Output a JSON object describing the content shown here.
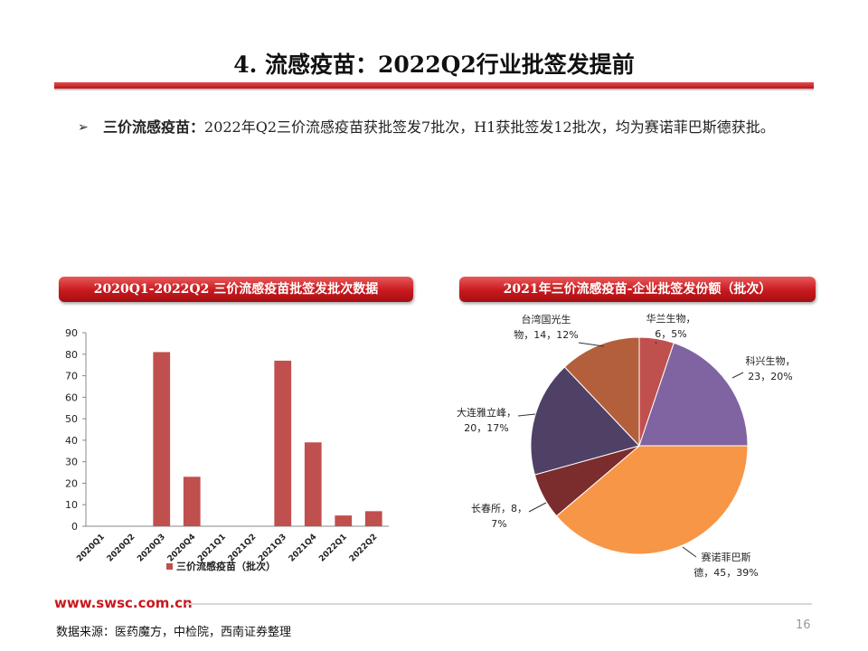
{
  "page": {
    "title": "4. 流感疫苗：2022Q2行业批签发提前",
    "bullet_arrow": "➢",
    "bullet_highlight": "三价流感疫苗：",
    "bullet_text": "2022年Q2三价流感疫苗获批签发7批次，H1获批签发12批次，均为赛诺菲巴斯德获批。",
    "footer_url": "www.swsc.com.cn",
    "source": "数据来源：医药魔方，中检院，西南证券整理",
    "page_number": "16"
  },
  "colors": {
    "accent_red": "#c8191e",
    "bar": "#c0504d"
  },
  "chart_data": [
    {
      "type": "bar",
      "title": "2020Q1-2022Q2 三价流感疫苗批签发批次数据",
      "categories": [
        "2020Q1",
        "2020Q2",
        "2020Q3",
        "2020Q4",
        "2021Q1",
        "2021Q2",
        "2021Q3",
        "2021Q4",
        "2022Q1",
        "2022Q2"
      ],
      "series": [
        {
          "name": "三价流感疫苗（批次）",
          "values": [
            0,
            0,
            81,
            23,
            0,
            0,
            77,
            39,
            5,
            7
          ]
        }
      ],
      "ylim": [
        0,
        90
      ],
      "yticks": [
        0,
        10,
        20,
        30,
        40,
        50,
        60,
        70,
        80,
        90
      ],
      "legend": "bottom",
      "grid": false
    },
    {
      "type": "pie",
      "title": "2021年三价流感疫苗-企业批签发份额（批次）",
      "slices": [
        {
          "name": "华兰生物",
          "value": 6,
          "label_line1": "华兰生物，",
          "label_line2": "6，5%",
          "color": "#c0504d"
        },
        {
          "name": "科兴生物",
          "value": 23,
          "label_line1": "科兴生物，",
          "label_line2": "23，20%",
          "color": "#8064a2"
        },
        {
          "name": "赛诺菲巴斯德",
          "value": 45,
          "label_line1": "赛诺菲巴斯",
          "label_line2": "德，45，39%",
          "color": "#f79646"
        },
        {
          "name": "长春所",
          "value": 8,
          "label_line1": "长春所，8，",
          "label_line2": "7%",
          "color": "#7b2c2c"
        },
        {
          "name": "大连雅立峰",
          "value": 20,
          "label_line1": "大连雅立峰，",
          "label_line2": "20，17%",
          "color": "#4f4066"
        },
        {
          "name": "台湾国光生物",
          "value": 14,
          "label_line1": "台湾国光生",
          "label_line2": "物，14，12%",
          "color": "#b45f3c"
        }
      ]
    }
  ]
}
